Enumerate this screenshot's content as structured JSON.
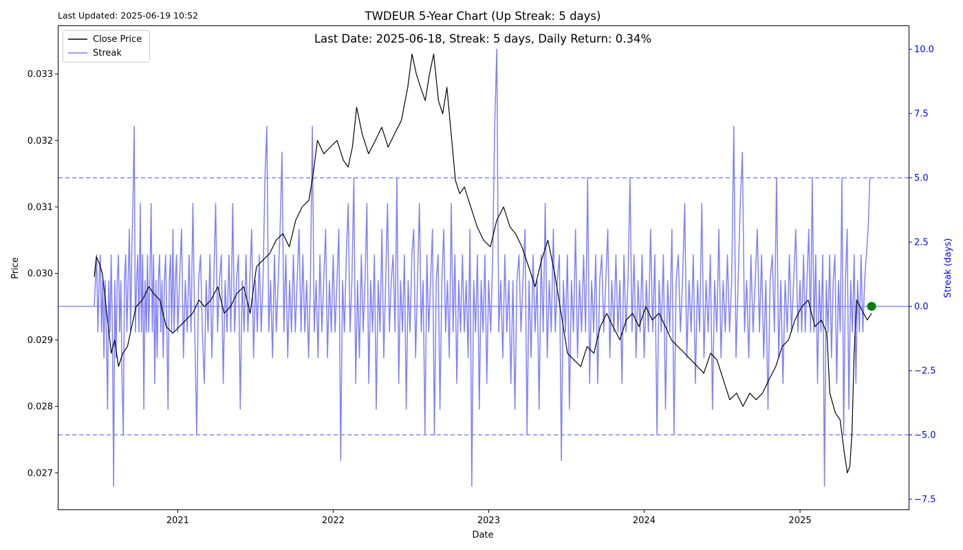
{
  "header": {
    "last_updated": "Last Updated: 2025-06-19 10:52"
  },
  "chart_data": {
    "type": "line",
    "title": "TWDEUR 5-Year Chart (Up Streak: 5 days)",
    "subtitle": "Last Date: 2025-06-18, Streak: 5 days, Daily Return: 0.34%",
    "xlabel": "Date",
    "ylabel": "Price",
    "y2label": "Streak (days)",
    "xlim": [
      "2020-03-27",
      "2025-09-13"
    ],
    "ylim": [
      0.02645,
      0.03372
    ],
    "y2lim": [
      -7.9,
      10.9
    ],
    "x_ticks": [
      "2021-01-01",
      "2022-01-01",
      "2023-01-01",
      "2024-01-01",
      "2025-01-01"
    ],
    "x_tick_labels": [
      "2021",
      "2022",
      "2023",
      "2024",
      "2025"
    ],
    "y_ticks": [
      0.027,
      0.028,
      0.029,
      0.03,
      0.031,
      0.032,
      0.033
    ],
    "y_tick_labels": [
      "0.027",
      "0.028",
      "0.029",
      "0.030",
      "0.031",
      "0.032",
      "0.033"
    ],
    "y2_ticks": [
      -7.5,
      -5.0,
      -2.5,
      0.0,
      2.5,
      5.0,
      7.5,
      10.0
    ],
    "y2_tick_labels": [
      "−7.5",
      "−5.0",
      "−2.5",
      "0.0",
      "2.5",
      "5.0",
      "7.5",
      "10.0"
    ],
    "legend": {
      "placement": "top-left",
      "entries": [
        {
          "label": "Close Price",
          "color": "#000000"
        },
        {
          "label": "Streak",
          "color": "#7f7fff"
        }
      ]
    },
    "reference_lines": [
      {
        "axis": "y2",
        "value": 5,
        "style": "dashed",
        "color": "#7f7fff"
      },
      {
        "axis": "y2",
        "value": -5,
        "style": "dashed",
        "color": "#7f7fff"
      },
      {
        "axis": "y2",
        "value": 0,
        "style": "solid",
        "color": "#7f7fff"
      }
    ],
    "marker": {
      "x": "2025-06-18",
      "y2": 0,
      "color": "#008000"
    },
    "series": [
      {
        "name": "Close Price",
        "axis": "y",
        "color": "#000000",
        "points": [
          [
            "2020-06-19",
            0.02995
          ],
          [
            "2020-06-24",
            0.03025
          ],
          [
            "2020-07-01",
            0.03015
          ],
          [
            "2020-07-08",
            0.03
          ],
          [
            "2020-07-15",
            0.0296
          ],
          [
            "2020-07-22",
            0.0292
          ],
          [
            "2020-07-29",
            0.0288
          ],
          [
            "2020-08-06",
            0.029
          ],
          [
            "2020-08-15",
            0.0286
          ],
          [
            "2020-08-25",
            0.0288
          ],
          [
            "2020-09-05",
            0.0289
          ],
          [
            "2020-09-15",
            0.0292
          ],
          [
            "2020-09-25",
            0.0295
          ],
          [
            "2020-10-10",
            0.0296
          ],
          [
            "2020-10-25",
            0.0298
          ],
          [
            "2020-11-05",
            0.0297
          ],
          [
            "2020-11-20",
            0.0296
          ],
          [
            "2020-12-05",
            0.0292
          ],
          [
            "2020-12-20",
            0.0291
          ],
          [
            "2021-01-05",
            0.0292
          ],
          [
            "2021-01-20",
            0.0293
          ],
          [
            "2021-02-05",
            0.0294
          ],
          [
            "2021-02-20",
            0.0296
          ],
          [
            "2021-03-05",
            0.0295
          ],
          [
            "2021-03-20",
            0.0296
          ],
          [
            "2021-04-05",
            0.0298
          ],
          [
            "2021-04-20",
            0.0294
          ],
          [
            "2021-05-05",
            0.0295
          ],
          [
            "2021-05-20",
            0.0297
          ],
          [
            "2021-06-05",
            0.0298
          ],
          [
            "2021-06-20",
            0.0294
          ],
          [
            "2021-07-05",
            0.0301
          ],
          [
            "2021-07-20",
            0.0302
          ],
          [
            "2021-08-05",
            0.0303
          ],
          [
            "2021-08-20",
            0.0305
          ],
          [
            "2021-09-05",
            0.0306
          ],
          [
            "2021-09-20",
            0.0304
          ],
          [
            "2021-10-05",
            0.0308
          ],
          [
            "2021-10-20",
            0.031
          ],
          [
            "2021-11-05",
            0.0311
          ],
          [
            "2021-11-15",
            0.0315
          ],
          [
            "2021-11-25",
            0.032
          ],
          [
            "2021-12-10",
            0.0318
          ],
          [
            "2021-12-25",
            0.0319
          ],
          [
            "2022-01-10",
            0.032
          ],
          [
            "2022-01-25",
            0.0317
          ],
          [
            "2022-02-05",
            0.0316
          ],
          [
            "2022-02-15",
            0.0319
          ],
          [
            "2022-02-25",
            0.0325
          ],
          [
            "2022-03-10",
            0.0321
          ],
          [
            "2022-03-25",
            0.0318
          ],
          [
            "2022-04-10",
            0.032
          ],
          [
            "2022-04-25",
            0.0322
          ],
          [
            "2022-05-10",
            0.0319
          ],
          [
            "2022-05-25",
            0.0321
          ],
          [
            "2022-06-10",
            0.0323
          ],
          [
            "2022-06-25",
            0.0328
          ],
          [
            "2022-07-05",
            0.0333
          ],
          [
            "2022-07-15",
            0.033
          ],
          [
            "2022-07-25",
            0.0328
          ],
          [
            "2022-08-05",
            0.0326
          ],
          [
            "2022-08-15",
            0.033
          ],
          [
            "2022-08-25",
            0.0333
          ],
          [
            "2022-09-05",
            0.0326
          ],
          [
            "2022-09-15",
            0.0324
          ],
          [
            "2022-09-25",
            0.0328
          ],
          [
            "2022-10-05",
            0.0321
          ],
          [
            "2022-10-15",
            0.0314
          ],
          [
            "2022-10-25",
            0.0312
          ],
          [
            "2022-11-05",
            0.0313
          ],
          [
            "2022-11-20",
            0.031
          ],
          [
            "2022-12-05",
            0.0307
          ],
          [
            "2022-12-20",
            0.0305
          ],
          [
            "2023-01-05",
            0.0304
          ],
          [
            "2023-01-20",
            0.0308
          ],
          [
            "2023-02-05",
            0.031
          ],
          [
            "2023-02-20",
            0.0307
          ],
          [
            "2023-03-05",
            0.0306
          ],
          [
            "2023-03-20",
            0.0304
          ],
          [
            "2023-04-05",
            0.0301
          ],
          [
            "2023-04-20",
            0.0298
          ],
          [
            "2023-05-05",
            0.0302
          ],
          [
            "2023-05-20",
            0.0305
          ],
          [
            "2023-06-05",
            0.03
          ],
          [
            "2023-06-20",
            0.0294
          ],
          [
            "2023-07-05",
            0.0288
          ],
          [
            "2023-07-20",
            0.0287
          ],
          [
            "2023-08-05",
            0.0286
          ],
          [
            "2023-08-20",
            0.0289
          ],
          [
            "2023-09-05",
            0.0288
          ],
          [
            "2023-09-20",
            0.0292
          ],
          [
            "2023-10-05",
            0.0294
          ],
          [
            "2023-10-20",
            0.0292
          ],
          [
            "2023-11-05",
            0.029
          ],
          [
            "2023-11-20",
            0.0293
          ],
          [
            "2023-12-05",
            0.0294
          ],
          [
            "2023-12-20",
            0.0292
          ],
          [
            "2024-01-05",
            0.0295
          ],
          [
            "2024-01-20",
            0.0293
          ],
          [
            "2024-02-05",
            0.0294
          ],
          [
            "2024-02-20",
            0.0292
          ],
          [
            "2024-03-05",
            0.029
          ],
          [
            "2024-03-20",
            0.0289
          ],
          [
            "2024-04-05",
            0.0288
          ],
          [
            "2024-04-20",
            0.0287
          ],
          [
            "2024-05-05",
            0.0286
          ],
          [
            "2024-05-20",
            0.0285
          ],
          [
            "2024-06-05",
            0.0288
          ],
          [
            "2024-06-20",
            0.0287
          ],
          [
            "2024-07-05",
            0.0284
          ],
          [
            "2024-07-20",
            0.0281
          ],
          [
            "2024-08-05",
            0.0282
          ],
          [
            "2024-08-20",
            0.028
          ],
          [
            "2024-09-05",
            0.0282
          ],
          [
            "2024-09-20",
            0.0281
          ],
          [
            "2024-10-05",
            0.0282
          ],
          [
            "2024-10-20",
            0.0284
          ],
          [
            "2024-11-05",
            0.0286
          ],
          [
            "2024-11-20",
            0.0289
          ],
          [
            "2024-12-05",
            0.029
          ],
          [
            "2024-12-20",
            0.0293
          ],
          [
            "2025-01-05",
            0.0295
          ],
          [
            "2025-01-20",
            0.0296
          ],
          [
            "2025-02-05",
            0.0292
          ],
          [
            "2025-02-20",
            0.0293
          ],
          [
            "2025-03-05",
            0.0291
          ],
          [
            "2025-03-12",
            0.0282
          ],
          [
            "2025-03-25",
            0.0279
          ],
          [
            "2025-04-05",
            0.0278
          ],
          [
            "2025-04-15",
            0.0273
          ],
          [
            "2025-04-22",
            0.027
          ],
          [
            "2025-04-28",
            0.0271
          ],
          [
            "2025-05-03",
            0.0276
          ],
          [
            "2025-05-08",
            0.0288
          ],
          [
            "2025-05-14",
            0.0296
          ],
          [
            "2025-05-22",
            0.0295
          ],
          [
            "2025-05-30",
            0.0294
          ],
          [
            "2025-06-08",
            0.0293
          ],
          [
            "2025-06-18",
            0.0294
          ]
        ]
      },
      {
        "name": "Streak",
        "axis": "y2",
        "color": "#7f7fff",
        "values_by_period": [
          [
            "2020-06-19",
            [
              0,
              1,
              2,
              -1,
              1,
              2,
              -1,
              1,
              -2,
              1,
              -1,
              -4,
              1,
              -1,
              2,
              -1,
              -7,
              1,
              -2,
              1,
              2,
              -1,
              1,
              -3,
              -5,
              1,
              2,
              -1,
              1,
              3,
              -1,
              2,
              4,
              7,
              -1,
              1,
              2,
              -1,
              4,
              -1,
              2,
              -4,
              1,
              -1,
              2,
              -1,
              1,
              4,
              -1,
              2,
              -3,
              1,
              -2,
              1,
              2,
              -1,
              1,
              -2,
              1,
              2,
              -1,
              -4,
              1,
              2,
              -1,
              3,
              -1,
              1,
              2
            ]
          ],
          [
            "2021-01-01",
            [
              -1,
              1,
              3,
              -2,
              1,
              -1,
              2,
              -1,
              4,
              -1,
              -5,
              1,
              2,
              -1,
              -3,
              1,
              -1,
              2,
              -2,
              1,
              4,
              -1,
              1,
              2,
              -3,
              1,
              -1,
              2,
              -1,
              4,
              -1,
              1,
              2,
              -4,
              1,
              -1,
              2,
              -1,
              1,
              3,
              -2,
              1,
              -1,
              2,
              -1,
              1,
              5,
              7,
              -1,
              1,
              -2,
              2,
              -1,
              1,
              3,
              6,
              -1,
              2,
              -2,
              1,
              -1,
              2,
              -1,
              1,
              3,
              -1,
              2,
              -1,
              1,
              -2,
              1,
              7,
              -1,
              1,
              -2,
              2,
              -1,
              1,
              3,
              -2,
              1,
              -1
            ]
          ],
          [
            "2022-01-01",
            [
              2,
              -1,
              1,
              3,
              -6,
              1,
              -1,
              2,
              4,
              -1,
              1,
              5,
              -3,
              1,
              -2,
              2,
              -1,
              1,
              4,
              -3,
              1,
              -1,
              2,
              -4,
              1,
              -1,
              3,
              -2,
              1,
              4,
              -1,
              1,
              2,
              -1,
              5,
              -3,
              1,
              -1,
              2,
              -4,
              1,
              -1,
              2,
              3,
              -2,
              1,
              4,
              -1,
              1,
              -5,
              2,
              -1,
              1,
              3,
              -5,
              1,
              2,
              -4,
              1,
              3,
              -1,
              1,
              -2,
              4,
              -1,
              2,
              -3,
              1,
              -1,
              2,
              -1,
              1,
              -2,
              3,
              -7,
              1,
              -1,
              2,
              -4,
              1,
              -1,
              2,
              -3
            ]
          ],
          [
            "2023-01-01",
            [
              1,
              -1,
              2,
              7,
              10,
              -1,
              1,
              -2,
              2,
              -1,
              1,
              -3,
              1,
              -4,
              1,
              2,
              -1,
              1,
              3,
              -5,
              1,
              -2,
              2,
              -1,
              1,
              -4,
              2,
              -1,
              4,
              -2,
              1,
              -1,
              3,
              -1,
              1,
              2,
              -6,
              1,
              -1,
              2,
              -4,
              1,
              -1,
              3,
              -2,
              1,
              -1,
              2,
              -1,
              5,
              -3,
              1,
              -1,
              2,
              -3,
              1,
              2,
              -1,
              1,
              3,
              -2,
              1,
              -1,
              2,
              -1,
              1,
              -3,
              2,
              -1,
              1,
              5,
              -1,
              2,
              -2,
              1,
              -1,
              2
            ]
          ],
          [
            "2024-01-01",
            [
              -2,
              1,
              -1,
              3,
              -1,
              2,
              -5,
              1,
              -1,
              2,
              -4,
              1,
              -1,
              3,
              -5,
              1,
              2,
              -1,
              1,
              4,
              -2,
              1,
              -1,
              2,
              -3,
              1,
              -1,
              4,
              -2,
              1,
              -1,
              2,
              -4,
              1,
              -1,
              3,
              -2,
              1,
              -1,
              2,
              -1,
              1,
              7,
              -2,
              1,
              4,
              6,
              -1,
              1,
              -2,
              2,
              -1,
              1,
              3,
              -1,
              2,
              -2,
              1,
              -4,
              1,
              2,
              -1,
              5,
              -2,
              1,
              -3,
              1,
              -1,
              2,
              -1,
              1,
              3,
              -1
            ]
          ],
          [
            "2025-01-01",
            [
              1,
              -1,
              2,
              -1,
              1,
              3,
              -1,
              5,
              -1,
              2,
              -3,
              1,
              -1,
              2,
              -7,
              1,
              -1,
              2,
              -2,
              1,
              2,
              -3,
              1,
              -1,
              5,
              -5,
              1,
              3,
              -4,
              1,
              -1,
              2,
              -3,
              1,
              -1,
              2,
              -1,
              1,
              2,
              3,
              5
            ]
          ]
        ]
      }
    ]
  }
}
